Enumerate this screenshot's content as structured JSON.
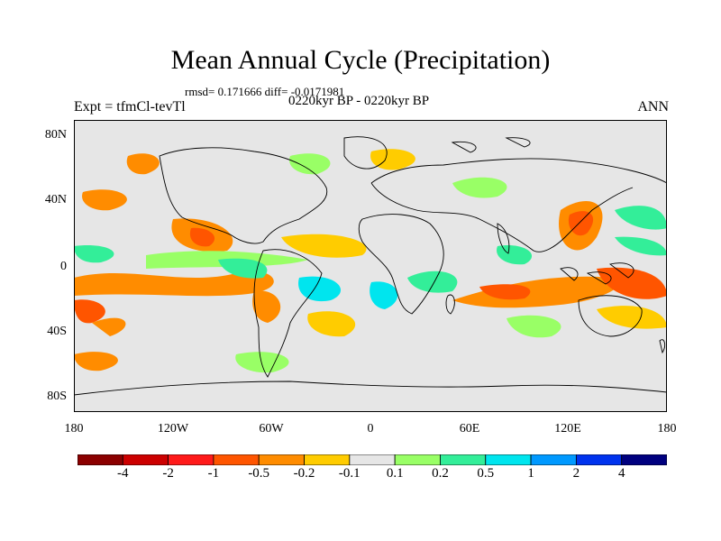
{
  "title": "Mean Annual Cycle (Precipitation)",
  "stats_text": "rmsd= 0.171666 diff= -0.0171981",
  "period_text": "0220kyr BP - 0220kyr BP",
  "experiment_text": "Expt = tfmCl-tevTl",
  "season_text": "ANN",
  "lat_ticks": [
    "80N",
    "40N",
    "0",
    "40S",
    "80S"
  ],
  "lon_ticks": [
    "180",
    "120W",
    "60W",
    "0",
    "60E",
    "120E",
    "180"
  ],
  "colorbar": {
    "labels": [
      "-4",
      "-2",
      "-1",
      "-0.5",
      "-0.2",
      "-0.1",
      "0.1",
      "0.2",
      "0.5",
      "1",
      "2",
      "4"
    ],
    "colors": [
      "#8b0000",
      "#cc0000",
      "#ff1a1a",
      "#ff5500",
      "#ff8c00",
      "#ffcc00",
      "#e6e6e6",
      "#99ff66",
      "#33ee99",
      "#00e5ee",
      "#0099ff",
      "#0033ee",
      "#00007f"
    ]
  },
  "colors": {
    "land_ocean_background": "#e6e6e6",
    "coastline": "#000000"
  }
}
